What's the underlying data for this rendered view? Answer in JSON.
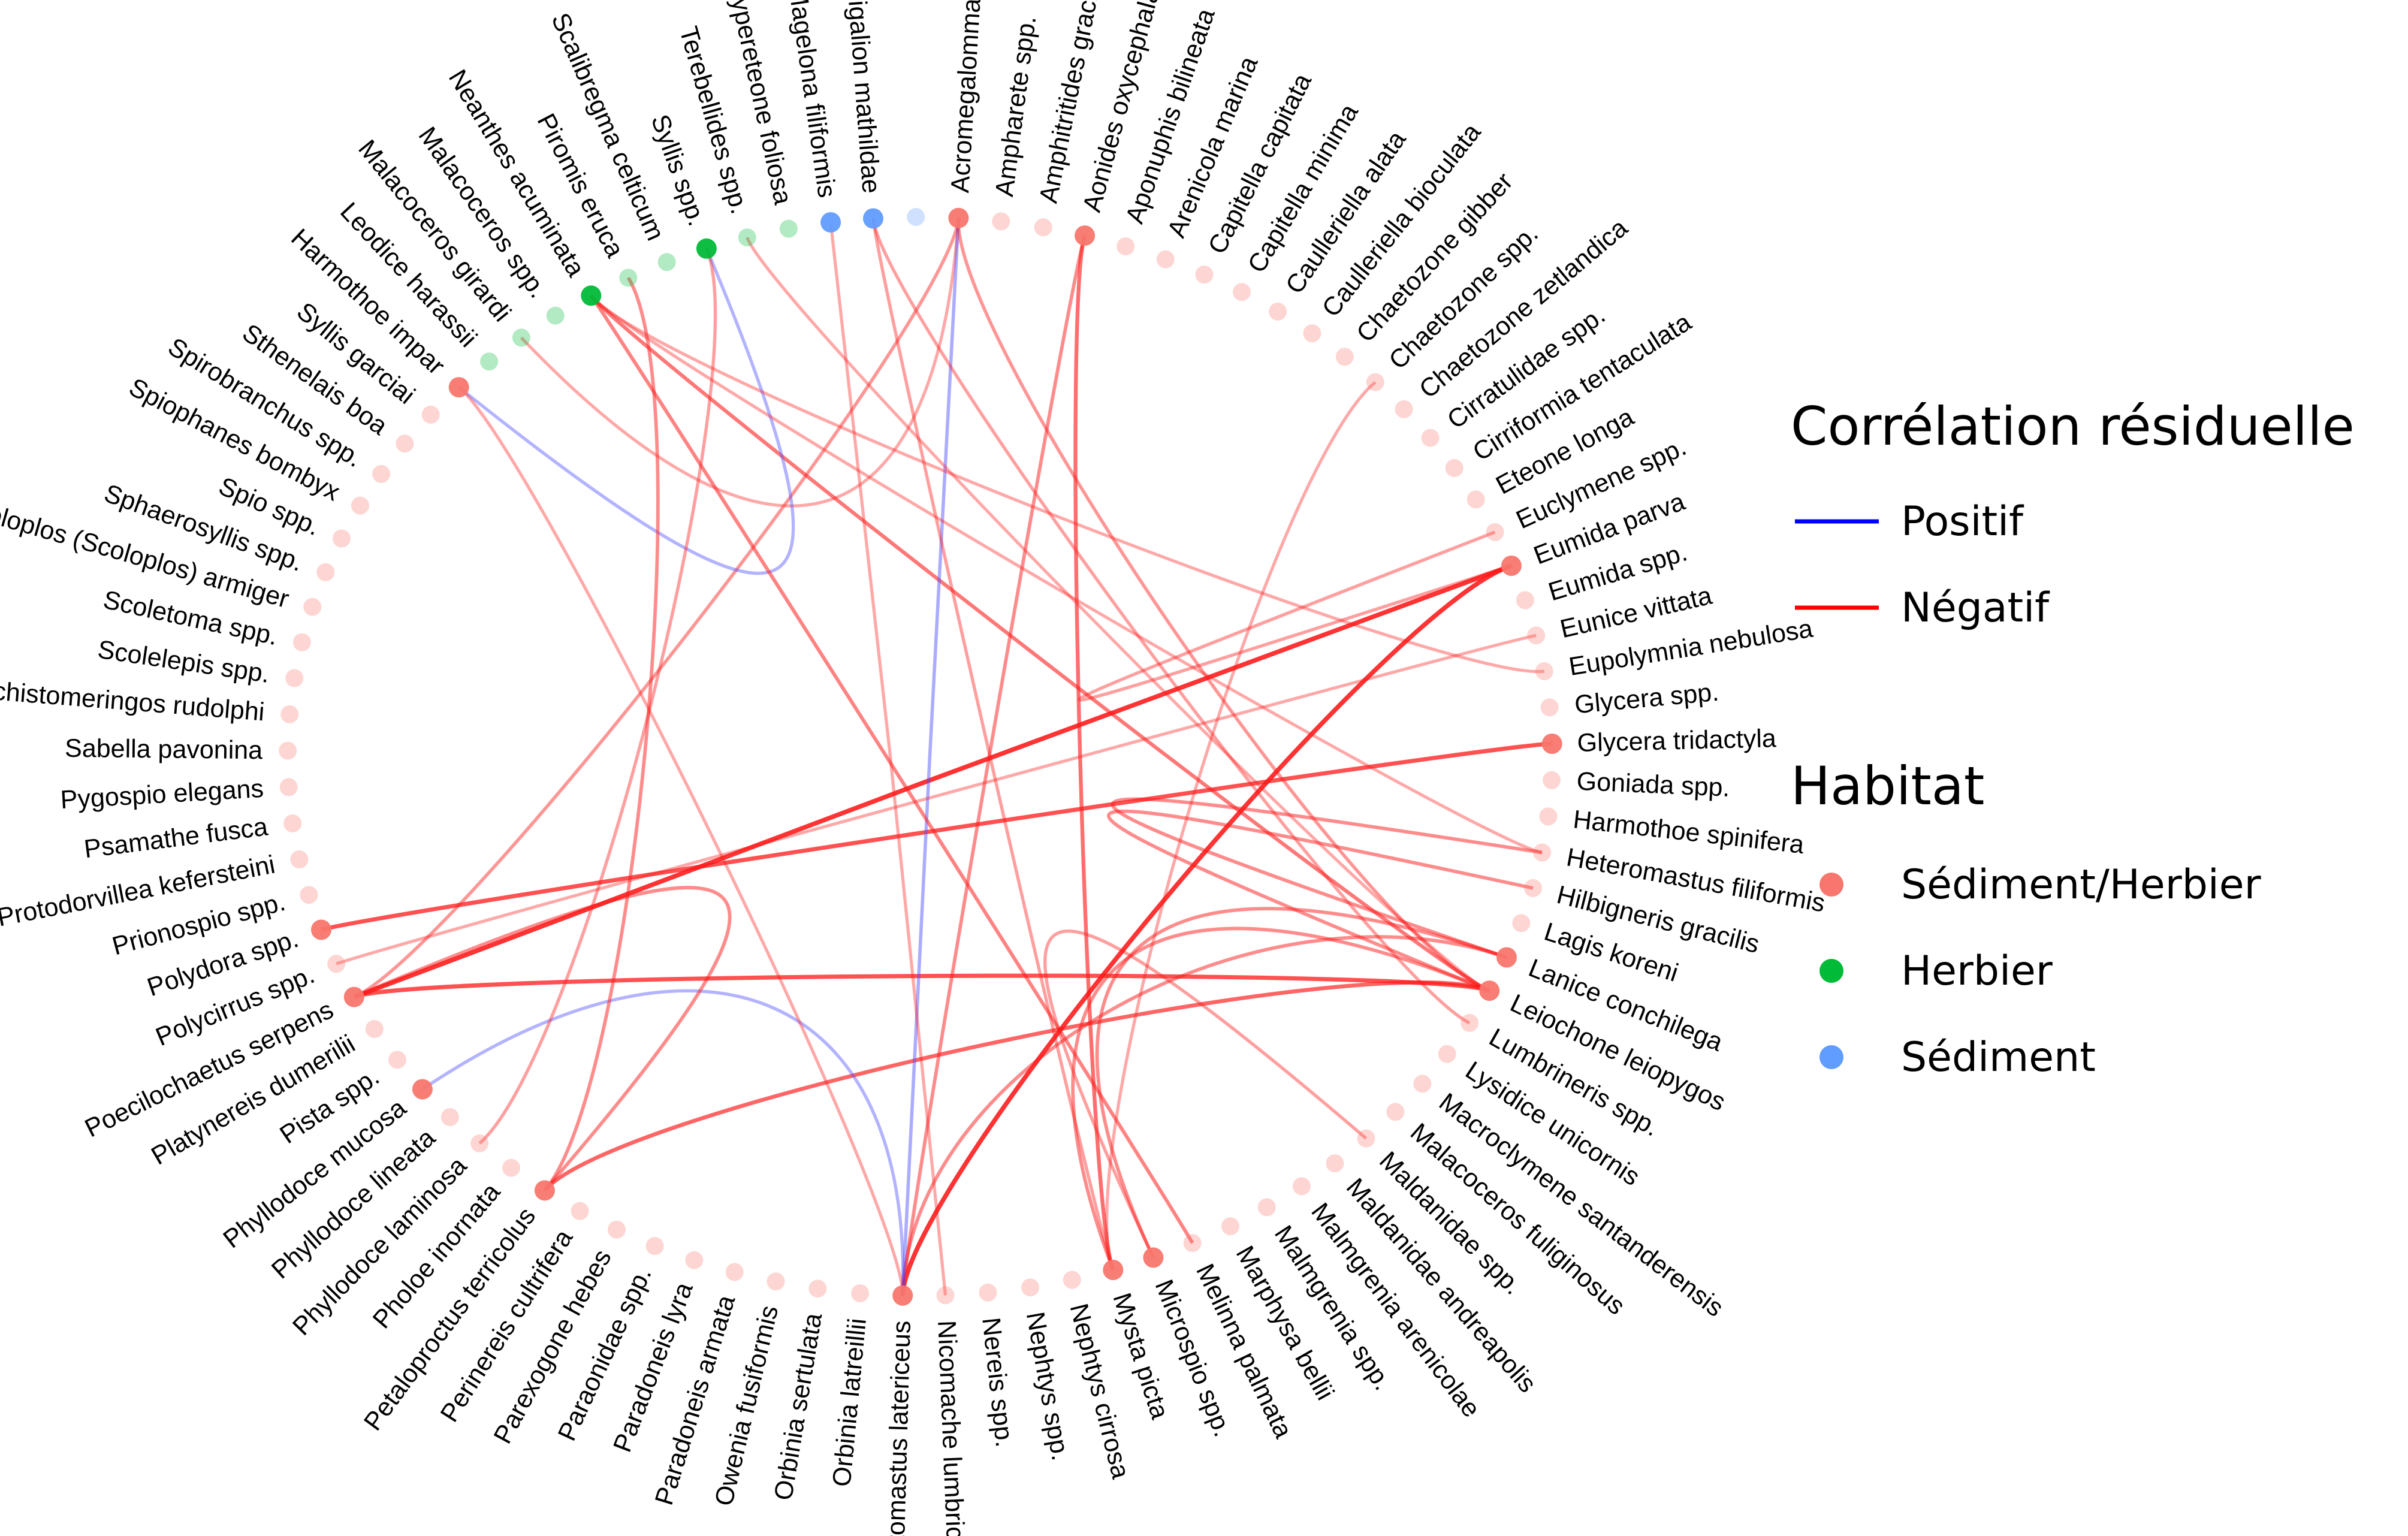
{
  "legend": {
    "correlation": {
      "title": "Corrélation résiduelle",
      "items": [
        {
          "key": "positive",
          "label": "Positif",
          "color": "#0000ff"
        },
        {
          "key": "negative",
          "label": "Négatif",
          "color": "#ff0000"
        }
      ]
    },
    "habitat": {
      "title": "Habitat",
      "items": [
        {
          "key": "SH",
          "label": "Sédiment/Herbier",
          "color": "#f8766d"
        },
        {
          "key": "H",
          "label": "Herbier",
          "color": "#00ba38"
        },
        {
          "key": "S",
          "label": "Sédiment",
          "color": "#619cff"
        }
      ]
    }
  },
  "species": [
    {
      "name": "Acromegalomma spp.",
      "habitat": "SH"
    },
    {
      "name": "Ampharete spp.",
      "habitat": "SH"
    },
    {
      "name": "Amphitritides gracilis",
      "habitat": "SH"
    },
    {
      "name": "Aonides oxycephala",
      "habitat": "SH"
    },
    {
      "name": "Aponuphis bilineata",
      "habitat": "SH"
    },
    {
      "name": "Arenicola marina",
      "habitat": "SH"
    },
    {
      "name": "Capitella capitata",
      "habitat": "SH"
    },
    {
      "name": "Capitella minima",
      "habitat": "SH"
    },
    {
      "name": "Caulleriella alata",
      "habitat": "SH"
    },
    {
      "name": "Caulleriella bioculata",
      "habitat": "SH"
    },
    {
      "name": "Chaetozone gibber",
      "habitat": "SH"
    },
    {
      "name": "Chaetozone spp.",
      "habitat": "SH"
    },
    {
      "name": "Chaetozone zetlandica",
      "habitat": "SH"
    },
    {
      "name": "Cirratulidae spp.",
      "habitat": "SH"
    },
    {
      "name": "Cirriformia tentaculata",
      "habitat": "SH"
    },
    {
      "name": "Eteone longa",
      "habitat": "SH"
    },
    {
      "name": "Euclymene spp.",
      "habitat": "SH"
    },
    {
      "name": "Eumida parva",
      "habitat": "SH"
    },
    {
      "name": "Eumida spp.",
      "habitat": "SH"
    },
    {
      "name": "Eunice vittata",
      "habitat": "SH"
    },
    {
      "name": "Eupolymnia nebulosa",
      "habitat": "SH"
    },
    {
      "name": "Glycera spp.",
      "habitat": "SH"
    },
    {
      "name": "Glycera tridactyla",
      "habitat": "SH"
    },
    {
      "name": "Goniada spp.",
      "habitat": "SH"
    },
    {
      "name": "Harmothoe spinifera",
      "habitat": "SH"
    },
    {
      "name": "Heteromastus filiformis",
      "habitat": "SH"
    },
    {
      "name": "Hilbigneris gracilis",
      "habitat": "SH"
    },
    {
      "name": "Lagis koreni",
      "habitat": "SH"
    },
    {
      "name": "Lanice conchilega",
      "habitat": "SH"
    },
    {
      "name": "Leiochone leiopygos",
      "habitat": "SH"
    },
    {
      "name": "Lumbrineris spp.",
      "habitat": "SH"
    },
    {
      "name": "Lysidice unicornis",
      "habitat": "SH"
    },
    {
      "name": "Macroclymene santanderensis",
      "habitat": "SH"
    },
    {
      "name": "Malacoceros fuliginosus",
      "habitat": "SH"
    },
    {
      "name": "Maldanidae spp.",
      "habitat": "SH"
    },
    {
      "name": "Maldanidae andreapolis",
      "habitat": "SH"
    },
    {
      "name": "Malmgrenia arenicolae",
      "habitat": "SH"
    },
    {
      "name": "Malmgrenia spp.",
      "habitat": "SH"
    },
    {
      "name": "Marphysa bellii",
      "habitat": "SH"
    },
    {
      "name": "Melinna palmata",
      "habitat": "SH"
    },
    {
      "name": "Microspio spp.",
      "habitat": "SH"
    },
    {
      "name": "Mysta picta",
      "habitat": "SH"
    },
    {
      "name": "Nephtys cirrosa",
      "habitat": "SH"
    },
    {
      "name": "Nephtys spp.",
      "habitat": "SH"
    },
    {
      "name": "Nereis spp.",
      "habitat": "SH"
    },
    {
      "name": "Nicomache lumbricalis",
      "habitat": "SH"
    },
    {
      "name": "Notomastus latericeus",
      "habitat": "SH"
    },
    {
      "name": "Orbinia latreillii",
      "habitat": "SH"
    },
    {
      "name": "Orbinia sertulata",
      "habitat": "SH"
    },
    {
      "name": "Owenia fusiformis",
      "habitat": "SH"
    },
    {
      "name": "Paradoneis armata",
      "habitat": "SH"
    },
    {
      "name": "Paradoneis lyra",
      "habitat": "SH"
    },
    {
      "name": "Paraonidae spp.",
      "habitat": "SH"
    },
    {
      "name": "Parexogone hebes",
      "habitat": "SH"
    },
    {
      "name": "Perinereis cultrifera",
      "habitat": "SH"
    },
    {
      "name": "Petaloproctus terricolus",
      "habitat": "SH"
    },
    {
      "name": "Pholoe inornata",
      "habitat": "SH"
    },
    {
      "name": "Phyllodoce laminosa",
      "habitat": "SH"
    },
    {
      "name": "Phyllodoce lineata",
      "habitat": "SH"
    },
    {
      "name": "Phyllodoce mucosa",
      "habitat": "SH"
    },
    {
      "name": "Pista spp.",
      "habitat": "SH"
    },
    {
      "name": "Platynereis dumerilii",
      "habitat": "SH"
    },
    {
      "name": "Poecilochaetus serpens",
      "habitat": "SH"
    },
    {
      "name": "Polycirrus spp.",
      "habitat": "SH"
    },
    {
      "name": "Polydora spp.",
      "habitat": "SH"
    },
    {
      "name": "Prionospio spp.",
      "habitat": "SH"
    },
    {
      "name": "Protodorvillea kefersteini",
      "habitat": "SH"
    },
    {
      "name": "Psamathe fusca",
      "habitat": "SH"
    },
    {
      "name": "Pygospio elegans",
      "habitat": "SH"
    },
    {
      "name": "Sabella pavonina",
      "habitat": "SH"
    },
    {
      "name": "Schistomeringos rudolphi",
      "habitat": "SH"
    },
    {
      "name": "Scolelepis spp.",
      "habitat": "SH"
    },
    {
      "name": "Scoletoma spp.",
      "habitat": "SH"
    },
    {
      "name": "Scoloplos (Scoloplos) armiger",
      "habitat": "SH"
    },
    {
      "name": "Sphaerosyllis spp.",
      "habitat": "SH"
    },
    {
      "name": "Spio spp.",
      "habitat": "SH"
    },
    {
      "name": "Spiophanes bombyx",
      "habitat": "SH"
    },
    {
      "name": "Spirobranchus spp.",
      "habitat": "SH"
    },
    {
      "name": "Sthenelais boa",
      "habitat": "SH"
    },
    {
      "name": "Syllis garciai",
      "habitat": "SH"
    },
    {
      "name": "Harmothoe impar",
      "habitat": "SH"
    },
    {
      "name": "Leodice harassii",
      "habitat": "H"
    },
    {
      "name": "Malacoceros girardi",
      "habitat": "H"
    },
    {
      "name": "Malacoceros spp.",
      "habitat": "H"
    },
    {
      "name": "Neanthes acuminata",
      "habitat": "H"
    },
    {
      "name": "Piromis eruca",
      "habitat": "H"
    },
    {
      "name": "Scalibregma celticum",
      "habitat": "H"
    },
    {
      "name": "Syllis spp.",
      "habitat": "H"
    },
    {
      "name": "Terebellides spp.",
      "habitat": "H"
    },
    {
      "name": "Hypereteone foliosa",
      "habitat": "H"
    },
    {
      "name": "Magelona filiformis",
      "habitat": "S"
    },
    {
      "name": "Sigalion mathildae",
      "habitat": "S"
    },
    {
      "name": "",
      "habitat": "S"
    }
  ],
  "highlighted": [
    "Acromegalomma spp.",
    "Aonides oxycephala",
    "Eumida parva",
    "Lanice conchilega",
    "Leiochone leiopygos",
    "Mysta picta",
    "Microspio spp.",
    "Notomastus latericeus",
    "Petaloproctus terricolus",
    "Polydora spp.",
    "Poecilochaetus serpens",
    "Phyllodoce mucosa",
    "Harmothoe impar",
    "Neanthes acuminata",
    "Syllis spp.",
    "Magelona filiformis",
    "Sigalion mathildae",
    "Glycera tridactyla"
  ],
  "links": [
    {
      "from": "Eumida parva",
      "to": "Poecilochaetus serpens",
      "sign": "negative",
      "strength": 0.9
    },
    {
      "from": "Eumida parva",
      "to": "Notomastus latericeus",
      "sign": "negative",
      "strength": 0.9
    },
    {
      "from": "Glycera tridactyla",
      "to": "Polydora spp.",
      "sign": "negative",
      "strength": 0.75
    },
    {
      "from": "Leiochone leiopygos",
      "to": "Poecilochaetus serpens",
      "sign": "negative",
      "strength": 0.75
    },
    {
      "from": "Leiochone leiopygos",
      "to": "Petaloproctus terricolus",
      "sign": "negative",
      "strength": 0.65
    },
    {
      "from": "Leiochone leiopygos",
      "to": "Neanthes acuminata",
      "sign": "negative",
      "strength": 0.55
    },
    {
      "from": "Lanice conchilega",
      "to": "Notomastus latericeus",
      "sign": "negative",
      "strength": 0.45
    },
    {
      "from": "Lanice conchilega",
      "to": "Heteromastus filiformis",
      "sign": "negative",
      "strength": 0.45
    },
    {
      "from": "Aonides oxycephala",
      "to": "Mysta picta",
      "sign": "negative",
      "strength": 0.6
    },
    {
      "from": "Aonides oxycephala",
      "to": "Notomastus latericeus",
      "sign": "negative",
      "strength": 0.45
    },
    {
      "from": "Acromegalomma spp.",
      "to": "Malacoceros girardi",
      "sign": "negative",
      "strength": 0.3
    },
    {
      "from": "Acromegalomma spp.",
      "to": "Poecilochaetus serpens",
      "sign": "negative",
      "strength": 0.4
    },
    {
      "from": "Acromegalomma spp.",
      "to": "Notomastus latericeus",
      "sign": "positive",
      "strength": 0.4
    },
    {
      "from": "Harmothoe impar",
      "to": "Syllis spp.",
      "sign": "positive",
      "strength": 0.35
    },
    {
      "from": "Phyllodoce mucosa",
      "to": "Notomastus latericeus",
      "sign": "positive",
      "strength": 0.35
    },
    {
      "from": "Poecilochaetus serpens",
      "to": "Petaloproctus terricolus",
      "sign": "negative",
      "strength": 0.45
    },
    {
      "from": "Piromis eruca",
      "to": "Petaloproctus terricolus",
      "sign": "negative",
      "strength": 0.45
    },
    {
      "from": "Neanthes acuminata",
      "to": "Eupolymnia nebulosa",
      "sign": "negative",
      "strength": 0.3
    },
    {
      "from": "Neanthes acuminata",
      "to": "Melinna palmata",
      "sign": "negative",
      "strength": 0.5
    },
    {
      "from": "Neanthes acuminata",
      "to": "Heteromastus filiformis",
      "sign": "negative",
      "strength": 0.3
    },
    {
      "from": "Sigalion mathildae",
      "to": "Mysta picta",
      "sign": "negative",
      "strength": 0.35
    },
    {
      "from": "Sigalion mathildae",
      "to": "Lumbrineris spp.",
      "sign": "negative",
      "strength": 0.35
    },
    {
      "from": "Magelona filiformis",
      "to": "Nicomache lumbricalis",
      "sign": "negative",
      "strength": 0.3
    },
    {
      "from": "Syllis spp.",
      "to": "Phyllodoce laminosa",
      "sign": "negative",
      "strength": 0.35
    },
    {
      "from": "Chaetozone spp.",
      "to": "Mysta picta",
      "sign": "negative",
      "strength": 0.3
    },
    {
      "from": "Eunice vittata",
      "to": "Polycirrus spp.",
      "sign": "negative",
      "strength": 0.3
    },
    {
      "from": "Leiochone leiopygos",
      "to": "Mysta picta",
      "sign": "negative",
      "strength": 0.45
    },
    {
      "from": "Euclymene spp.",
      "to": "Eumida parva",
      "sign": "negative",
      "strength": 0.35
    },
    {
      "from": "Hilbigneris gracilis",
      "to": "Leiochone leiopygos",
      "sign": "negative",
      "strength": 0.45
    },
    {
      "from": "Lanice conchilega",
      "to": "Microspio spp.",
      "sign": "negative",
      "strength": 0.45
    },
    {
      "from": "Maldanidae spp.",
      "to": "Microspio spp.",
      "sign": "negative",
      "strength": 0.35
    },
    {
      "from": "Acromegalomma spp.",
      "to": "Leiochone leiopygos",
      "sign": "negative",
      "strength": 0.4
    },
    {
      "from": "Terebellides spp.",
      "to": "Leiochone leiopygos",
      "sign": "negative",
      "strength": 0.3
    },
    {
      "from": "Harmothoe impar",
      "to": "Notomastus latericeus",
      "sign": "negative",
      "strength": 0.3
    }
  ]
}
